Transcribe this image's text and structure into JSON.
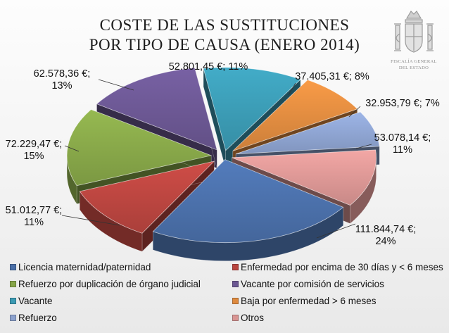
{
  "header": {
    "title_line1": "COSTE DE LAS SUSTITUCIONES",
    "title_line2": "POR TIPO DE CAUSA (ENERO 2014)"
  },
  "logo": {
    "name": "coat-of-arms-icon",
    "text_line1": "FISCALÍA GENERAL",
    "text_line2": "DEL ESTADO"
  },
  "chart_data": {
    "type": "pie",
    "title": "COSTE DE LAS SUSTITUCIONES POR TIPO DE CAUSA (ENERO 2014)",
    "legend_position": "bottom",
    "slices": [
      {
        "name": "Licencia maternidad/paternidad",
        "value": 111844.74,
        "label_line1": "111.844,74 €;",
        "label_line2": "24%",
        "color": "#4a6fa8"
      },
      {
        "name": "Enfermedad por encima de 30 días y < 6 meses",
        "value": 51012.77,
        "label_line1": "51.012,77 €;",
        "label_line2": "11%",
        "color": "#b9453f"
      },
      {
        "name": "Refuerzo por duplicación de órgano judicial",
        "value": 72229.47,
        "label_line1": "72.229,47 €;",
        "label_line2": "15%",
        "color": "#86a548"
      },
      {
        "name": "Vacante por comisión de servicios",
        "value": 62578.36,
        "label_line1": "62.578,36 €;",
        "label_line2": "13%",
        "color": "#6b5792"
      },
      {
        "name": "Vacante",
        "value": 52801.45,
        "label_line1": "52.801,45 €; 11%",
        "label_line2": "",
        "color": "#3b9ab3"
      },
      {
        "name": "Baja por enfermedad > 6 meses",
        "value": 37405.31,
        "label_line1": "37.405,31 €; 8%",
        "label_line2": "",
        "color": "#de8a3f"
      },
      {
        "name": "Refuerzo",
        "value": 32953.79,
        "label_line1": "32.953,79 €; 7%",
        "label_line2": "",
        "color": "#8ca2ce"
      },
      {
        "name": "Otros",
        "value": 53078.14,
        "label_line1": "53.078,14 €;",
        "label_line2": "11%",
        "color": "#d99593"
      }
    ]
  },
  "legend": [
    {
      "label": "Licencia maternidad/paternidad",
      "color": "#4a6fa8"
    },
    {
      "label": "Enfermedad por encima de 30 días y < 6 meses",
      "color": "#b9453f"
    },
    {
      "label": "Refuerzo por duplicación de órgano judicial",
      "color": "#86a548"
    },
    {
      "label": "Vacante por comisión de servicios",
      "color": "#6b5792"
    },
    {
      "label": "Vacante",
      "color": "#3b9ab3"
    },
    {
      "label": "Baja por enfermedad > 6 meses",
      "color": "#de8a3f"
    },
    {
      "label": "Refuerzo",
      "color": "#8ca2ce"
    },
    {
      "label": "Otros",
      "color": "#d99593"
    }
  ]
}
